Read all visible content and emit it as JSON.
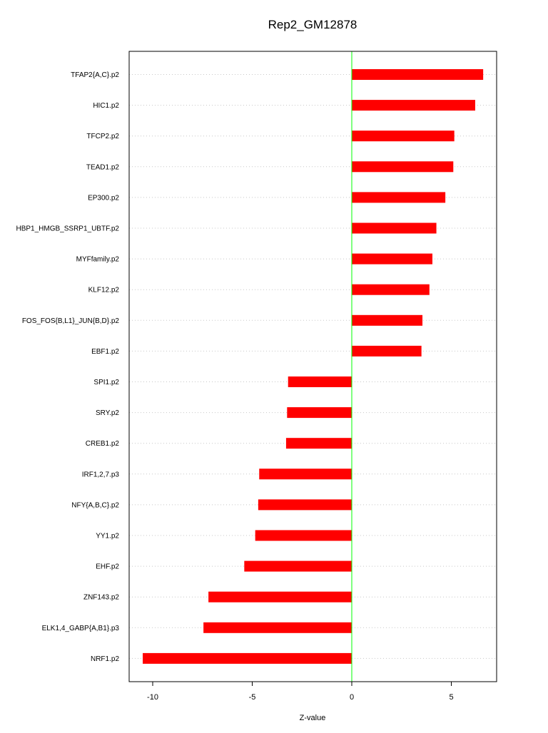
{
  "chart_data": {
    "type": "bar",
    "orientation": "horizontal",
    "title": "Rep2_GM12878",
    "xlabel": "Z-value",
    "ylabel": "",
    "xlim": [
      -11.2,
      7.2
    ],
    "xticks": [
      -10,
      -5,
      0,
      5
    ],
    "grid": "horizontal-dotted",
    "zero_line_color": "#00ff00",
    "bar_color": "#ff0000",
    "categories": [
      "TFAP2{A,C}.p2",
      "HIC1.p2",
      "TFCP2.p2",
      "TEAD1.p2",
      "EP300.p2",
      "HBP1_HMGB_SSRP1_UBTF.p2",
      "MYFfamily.p2",
      "KLF12.p2",
      "FOS_FOS{B,L1}_JUN{B,D}.p2",
      "EBF1.p2",
      "SPI1.p2",
      "SRY.p2",
      "CREB1.p2",
      "IRF1,2,7.p3",
      "NFY{A,B,C}.p2",
      "YY1.p2",
      "EHF.p2",
      "ZNF143.p2",
      "ELK1,4_GABP{A,B1}.p3",
      "NRF1.p2"
    ],
    "values": [
      6.6,
      6.2,
      5.15,
      5.1,
      4.7,
      4.25,
      4.05,
      3.9,
      3.55,
      3.5,
      -3.2,
      -3.25,
      -3.3,
      -4.65,
      -4.7,
      -4.85,
      -5.4,
      -7.2,
      -7.45,
      -10.5
    ]
  }
}
